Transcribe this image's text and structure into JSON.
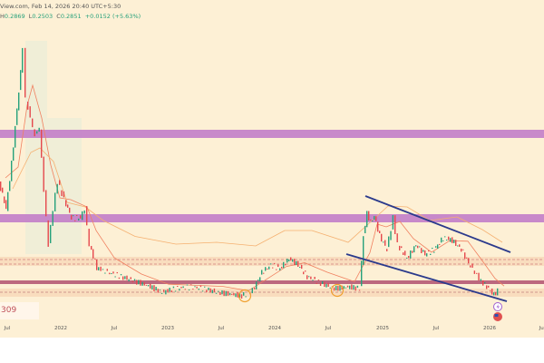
{
  "header": {
    "title": "View.com, Feb 14, 2026 20:40 UTC+5:30",
    "high_label": "H",
    "high": "0.2869",
    "low_label": "L",
    "low": "0.2503",
    "close_label": "C",
    "close": "0.2851",
    "change": "+0.0152 (+5.63%)"
  },
  "price_label": "309",
  "x_axis": [
    "Jul",
    "2022",
    "Jul",
    "2023",
    "Jul",
    "2024",
    "Jul",
    "2025",
    "Jul",
    "2026",
    "Jul"
  ],
  "colors": {
    "background": "#fdf0d5",
    "resistance_band": "#c27dc9",
    "support_line": "#b0506e",
    "trendline": "#2b3a8c",
    "highlight_circle": "#f0a030",
    "up_candle": "#26a17b",
    "down_candle": "#e5484d"
  },
  "icons": [
    "lightning-event-icon",
    "us-flag-event-icon"
  ]
}
